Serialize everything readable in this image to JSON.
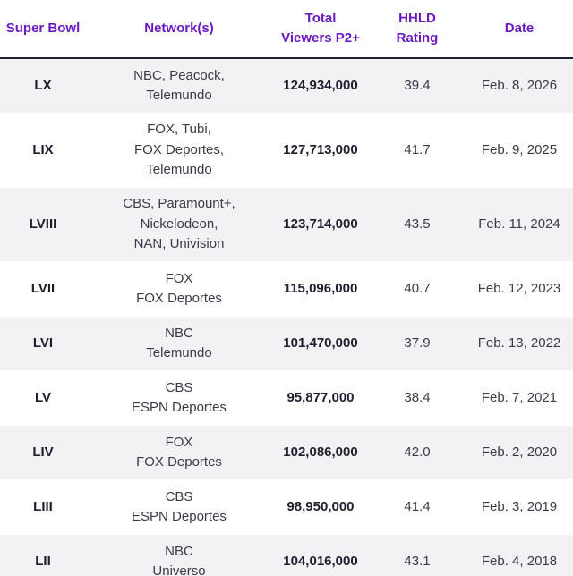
{
  "headers": {
    "super_bowl": "Super Bowl",
    "networks": "Network(s)",
    "viewers": "Total\nViewers P2+",
    "rating": "HHLD\nRating",
    "date": "Date"
  },
  "rows": [
    {
      "bowl": "LX",
      "networks": [
        "NBC, Peacock,",
        "Telemundo"
      ],
      "viewers": "124,934,000",
      "rating": "39.4",
      "date": "Feb. 8, 2026"
    },
    {
      "bowl": "LIX",
      "networks": [
        "FOX, Tubi,",
        "FOX Deportes,",
        "Telemundo"
      ],
      "viewers": "127,713,000",
      "rating": "41.7",
      "date": "Feb. 9, 2025"
    },
    {
      "bowl": "LVIII",
      "networks": [
        "CBS, Paramount+,",
        "Nickelodeon,",
        "NAN, Univision"
      ],
      "viewers": "123,714,000",
      "rating": "43.5",
      "date": "Feb. 11, 2024"
    },
    {
      "bowl": "LVII",
      "networks": [
        "FOX",
        "FOX Deportes"
      ],
      "viewers": "115,096,000",
      "rating": "40.7",
      "date": "Feb. 12, 2023"
    },
    {
      "bowl": "LVI",
      "networks": [
        "NBC",
        "Telemundo"
      ],
      "viewers": "101,470,000",
      "rating": "37.9",
      "date": "Feb. 13, 2022"
    },
    {
      "bowl": "LV",
      "networks": [
        "CBS",
        "ESPN Deportes"
      ],
      "viewers": "95,877,000",
      "rating": "38.4",
      "date": "Feb. 7, 2021"
    },
    {
      "bowl": "LIV",
      "networks": [
        "FOX",
        "FOX Deportes"
      ],
      "viewers": "102,086,000",
      "rating": "42.0",
      "date": "Feb. 2, 2020"
    },
    {
      "bowl": "LIII",
      "networks": [
        "CBS",
        "ESPN Deportes"
      ],
      "viewers": "98,950,000",
      "rating": "41.4",
      "date": "Feb. 3, 2019"
    },
    {
      "bowl": "LII",
      "networks": [
        "NBC",
        "Universo"
      ],
      "viewers": "104,016,000",
      "rating": "43.1",
      "date": "Feb. 4, 2018"
    }
  ],
  "colors": {
    "header_text": "#6b1ac2",
    "row_shaded": "#f2f2f4",
    "row_plain": "#ffffff"
  }
}
